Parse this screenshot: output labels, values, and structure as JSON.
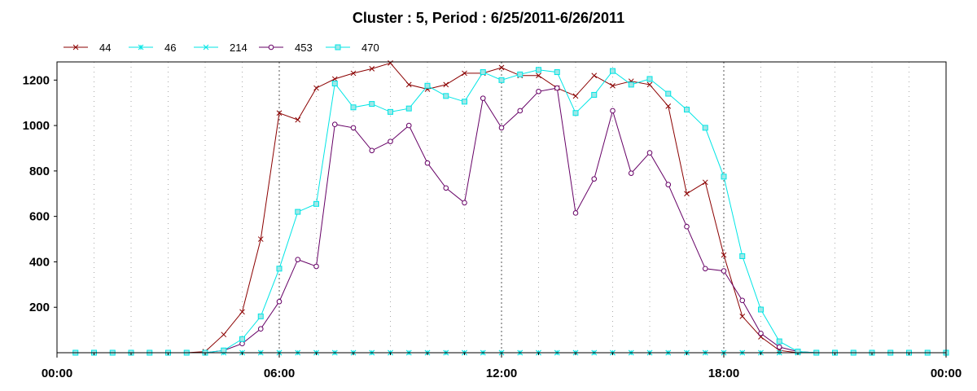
{
  "chart_data": {
    "type": "line",
    "title": "Cluster : 5, Period : 6/25/2011-6/26/2011",
    "xlabel": "",
    "ylabel": "",
    "x_ticks": [
      "00:00",
      "06:00",
      "12:00",
      "18:00",
      "00:00"
    ],
    "x_range_hours": [
      0,
      24
    ],
    "ylim": [
      0,
      1280
    ],
    "y_ticks": [
      200,
      400,
      600,
      800,
      1000,
      1200
    ],
    "grid": "vertical dotted",
    "legend_position": "top-left",
    "x": [
      0.5,
      1,
      1.5,
      2,
      2.5,
      3,
      3.5,
      4,
      4.5,
      5,
      5.5,
      6,
      6.5,
      7,
      7.5,
      8,
      8.5,
      9,
      9.5,
      10,
      10.5,
      11,
      11.5,
      12,
      12.5,
      13,
      13.5,
      14,
      14.5,
      15,
      15.5,
      16,
      16.5,
      17,
      17.5,
      18,
      18.5,
      19,
      19.5,
      20,
      20.5,
      21,
      21.5,
      22,
      22.5,
      23,
      23.5,
      24
    ],
    "series": [
      {
        "name": "44",
        "color": "#8b0000",
        "marker": "x",
        "values": [
          0,
          0,
          0,
          0,
          0,
          0,
          0,
          5,
          80,
          180,
          500,
          1055,
          1025,
          1165,
          1205,
          1230,
          1250,
          1275,
          1180,
          1160,
          1180,
          1230,
          1230,
          1255,
          1220,
          1220,
          1165,
          1130,
          1220,
          1175,
          1195,
          1180,
          1085,
          700,
          750,
          430,
          160,
          70,
          10,
          0,
          0,
          0,
          0,
          0,
          0,
          0,
          0,
          0
        ]
      },
      {
        "name": "46",
        "color": "#00e5e5",
        "marker": "asterisk",
        "values": [
          0,
          0,
          0,
          0,
          0,
          0,
          0,
          0,
          0,
          0,
          0,
          0,
          0,
          0,
          0,
          0,
          0,
          0,
          0,
          0,
          0,
          0,
          0,
          0,
          0,
          0,
          0,
          0,
          0,
          0,
          0,
          0,
          0,
          0,
          0,
          0,
          0,
          0,
          0,
          0,
          0,
          0,
          0,
          0,
          0,
          0,
          0,
          0
        ]
      },
      {
        "name": "214",
        "color": "#00e5e5",
        "marker": "x",
        "values": [
          0,
          0,
          0,
          0,
          0,
          0,
          0,
          0,
          0,
          0,
          0,
          0,
          0,
          0,
          0,
          0,
          0,
          0,
          0,
          0,
          0,
          0,
          0,
          0,
          0,
          0,
          0,
          0,
          0,
          0,
          0,
          0,
          0,
          0,
          0,
          0,
          0,
          0,
          0,
          0,
          0,
          0,
          0,
          0,
          0,
          0,
          0,
          0
        ]
      },
      {
        "name": "453",
        "color": "#660066",
        "marker": "circle",
        "values": [
          0,
          0,
          0,
          0,
          0,
          0,
          0,
          0,
          10,
          40,
          105,
          225,
          410,
          380,
          1005,
          990,
          890,
          930,
          1000,
          835,
          725,
          660,
          1120,
          990,
          1065,
          1150,
          1165,
          615,
          765,
          1065,
          790,
          880,
          740,
          555,
          370,
          360,
          230,
          85,
          25,
          5,
          0,
          0,
          0,
          0,
          0,
          0,
          0,
          0
        ]
      },
      {
        "name": "470",
        "color": "#00e5e5",
        "marker": "square",
        "values": [
          0,
          0,
          0,
          0,
          0,
          0,
          0,
          0,
          10,
          60,
          160,
          370,
          620,
          655,
          1185,
          1080,
          1095,
          1060,
          1075,
          1175,
          1130,
          1105,
          1235,
          1200,
          1225,
          1245,
          1235,
          1055,
          1135,
          1240,
          1180,
          1205,
          1140,
          1070,
          990,
          775,
          425,
          190,
          50,
          5,
          0,
          0,
          0,
          0,
          0,
          0,
          0,
          0
        ]
      }
    ]
  }
}
